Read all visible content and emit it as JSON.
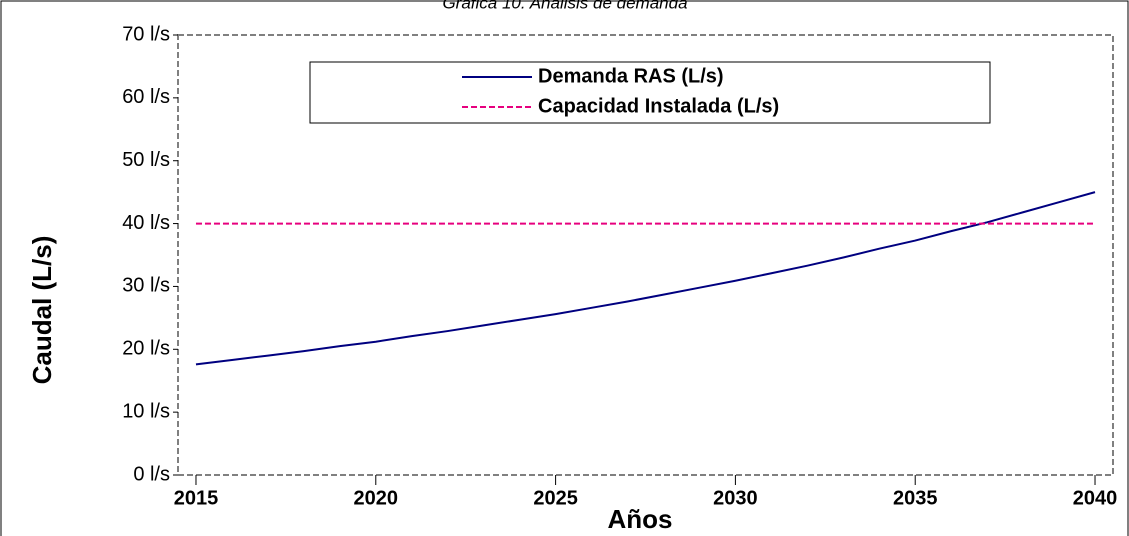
{
  "chart_data": {
    "type": "line",
    "title": "Gráfica 10. Análisis de demanda",
    "x_label": "Años",
    "y_label": "Caudal (L/s)",
    "x": [
      2015,
      2016,
      2017,
      2018,
      2019,
      2020,
      2021,
      2022,
      2023,
      2024,
      2025,
      2026,
      2027,
      2028,
      2029,
      2030,
      2031,
      2032,
      2033,
      2034,
      2035,
      2036,
      2037,
      2038,
      2039,
      2040
    ],
    "series": [
      {
        "name": "Demanda RAS (L/s)",
        "color": "#000080",
        "dash": false,
        "values": [
          17.6,
          18.3,
          19.0,
          19.7,
          20.5,
          21.2,
          22.1,
          22.9,
          23.8,
          24.7,
          25.6,
          26.6,
          27.6,
          28.7,
          29.8,
          30.9,
          32.1,
          33.3,
          34.6,
          36.0,
          37.3,
          38.8,
          40.2,
          41.8,
          43.4,
          45.0
        ]
      },
      {
        "name": "Capacidad Instalada (L/s)",
        "color": "#e6007e",
        "dash": true,
        "values": [
          40,
          40,
          40,
          40,
          40,
          40,
          40,
          40,
          40,
          40,
          40,
          40,
          40,
          40,
          40,
          40,
          40,
          40,
          40,
          40,
          40,
          40,
          40,
          40,
          40,
          40
        ]
      }
    ],
    "xlim": [
      2014.5,
      2040.5
    ],
    "xticks": [
      2015,
      2020,
      2025,
      2030,
      2035,
      2040
    ],
    "ylim": [
      0,
      70
    ],
    "yticks": [
      {
        "value": 0,
        "label": "0 l/s"
      },
      {
        "value": 10,
        "label": "10 l/s"
      },
      {
        "value": 20,
        "label": "20 l/s"
      },
      {
        "value": 30,
        "label": "30 l/s"
      },
      {
        "value": 40,
        "label": "40 l/s"
      },
      {
        "value": 50,
        "label": "50 l/s"
      },
      {
        "value": 60,
        "label": "60 l/s"
      },
      {
        "value": 70,
        "label": "70 l/s"
      }
    ],
    "grid": false,
    "legend": "top"
  }
}
